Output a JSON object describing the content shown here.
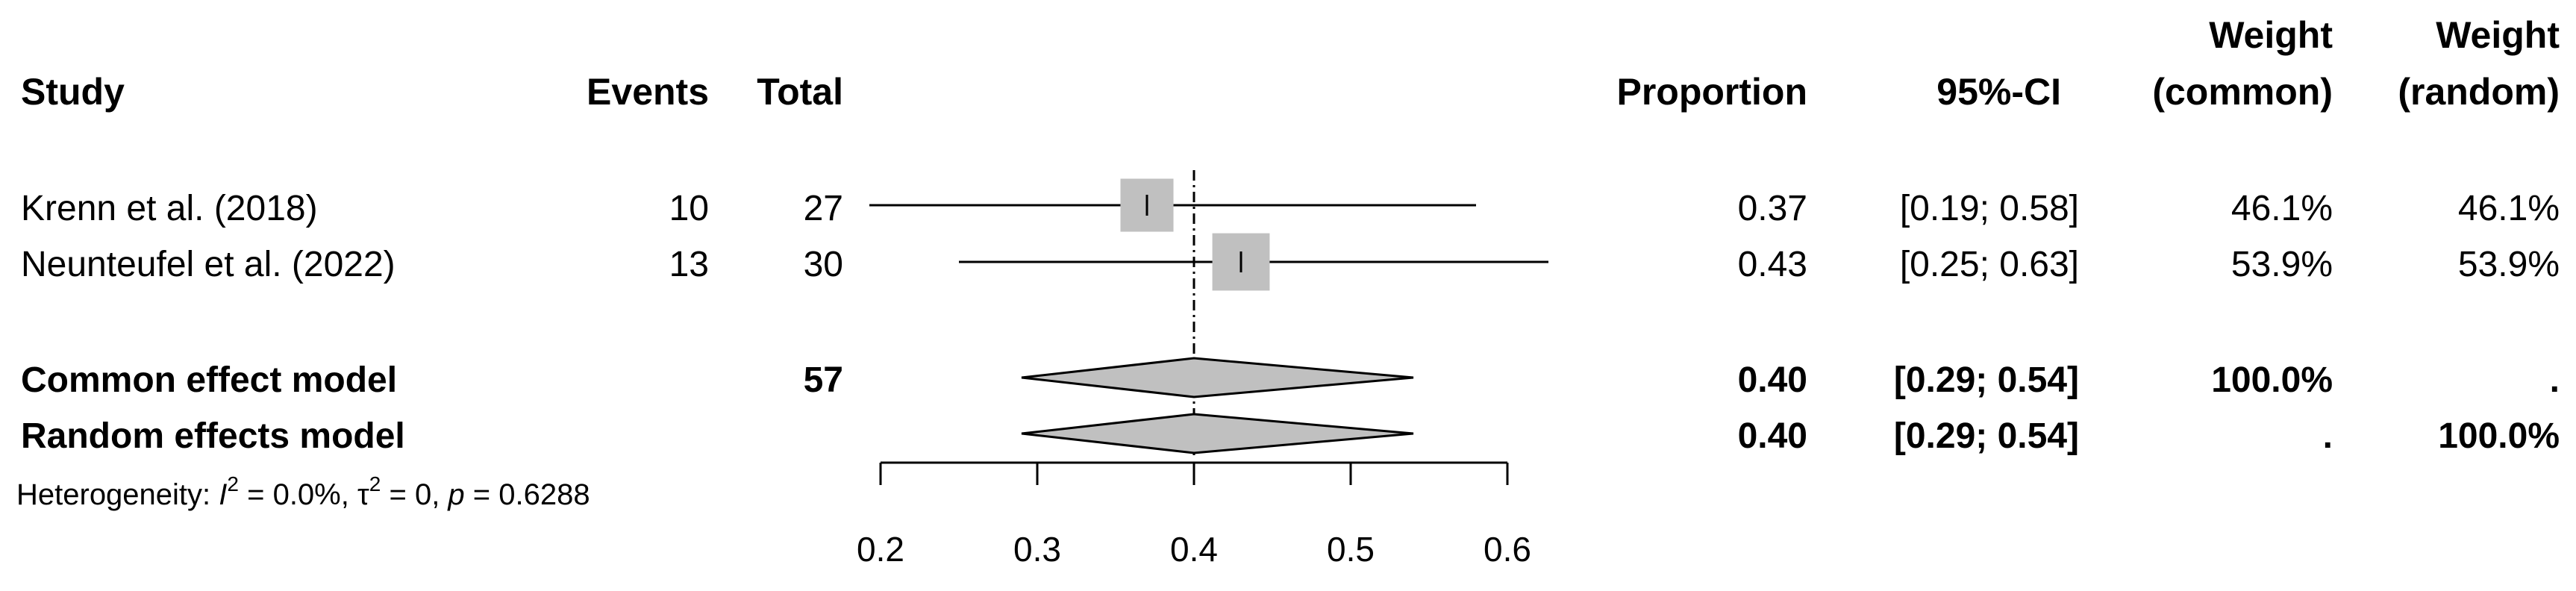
{
  "headers": {
    "study": "Study",
    "events": "Events",
    "total": "Total",
    "proportion": "Proportion",
    "ci": "95%-CI",
    "weight_common_top": "Weight",
    "weight_common_bottom": "(common)",
    "weight_random_top": "Weight",
    "weight_random_bottom": "(random)"
  },
  "chart_data": {
    "type": "forest",
    "xlim": [
      0.2,
      0.6
    ],
    "x_ticks": [
      0.2,
      0.3,
      0.4,
      0.5,
      0.6
    ],
    "x_tick_labels": [
      "0.2",
      "0.3",
      "0.4",
      "0.5",
      "0.6"
    ],
    "reference_line": 0.4,
    "studies": [
      {
        "study": "Krenn et al. (2018)",
        "events": "10",
        "total": "27",
        "proportion": 0.37,
        "lower": 0.19,
        "upper": 0.58,
        "proportion_label": "0.37",
        "ci_label": "[0.19; 0.58]",
        "weight_common": "46.1%",
        "weight_random": "46.1%",
        "weight_fraction": 0.461
      },
      {
        "study": "Neunteufel et al. (2022)",
        "events": "13",
        "total": "30",
        "proportion": 0.43,
        "lower": 0.25,
        "upper": 0.63,
        "proportion_label": "0.43",
        "ci_label": "[0.25; 0.63]",
        "weight_common": "53.9%",
        "weight_random": "53.9%",
        "weight_fraction": 0.539
      }
    ],
    "pooled": [
      {
        "model": "Common effect model",
        "total": "57",
        "proportion": 0.4,
        "lower": 0.29,
        "upper": 0.54,
        "proportion_label": "0.40",
        "ci_label": "[0.29; 0.54]",
        "weight_common": "100.0%",
        "weight_random": "."
      },
      {
        "model": "Random effects model",
        "total": "",
        "proportion": 0.4,
        "lower": 0.29,
        "upper": 0.54,
        "proportion_label": "0.40",
        "ci_label": "[0.29; 0.54]",
        "weight_common": ".",
        "weight_random": "100.0%"
      }
    ],
    "heterogeneity": {
      "prefix": "Heterogeneity: ",
      "i2_symbol": "I",
      "i2_value": " = 0.0%, ",
      "tau_symbol": "τ",
      "tau_value": " = 0, ",
      "p_symbol": "p",
      "p_value": " = 0.6288",
      "superscript": "2"
    }
  }
}
